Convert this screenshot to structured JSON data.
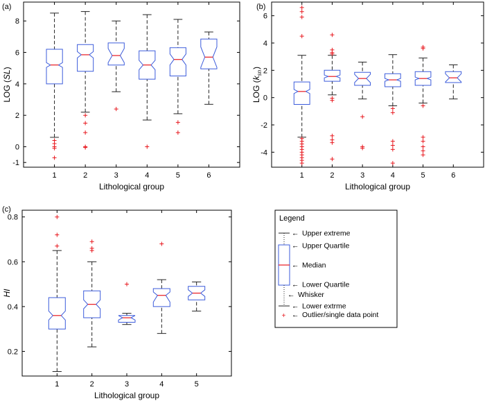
{
  "colors": {
    "box": "#3b5bdb",
    "median": "#e8181e",
    "outlier": "#e8181e",
    "whisker": "#222222",
    "axis": "#000000"
  },
  "chart_data": [
    {
      "type": "box",
      "panel_label": "(a)",
      "xlabel": "Lithological group",
      "ylabel_prefix": "LOG (",
      "ylabel_var": "SL",
      "ylabel_suffix": ")",
      "ylim": [
        -1.3,
        9.2
      ],
      "yticks": [
        -1,
        0,
        2,
        4,
        6,
        8
      ],
      "categories": [
        "1",
        "2",
        "3",
        "4",
        "5",
        "6"
      ],
      "boxes": [
        {
          "whisker_low": 0.6,
          "q1": 4.0,
          "median": 5.2,
          "q3": 6.2,
          "whisker_high": 8.5,
          "notch_low": 5.05,
          "notch_high": 5.35,
          "outliers": [
            0.4,
            0.2,
            0.0,
            -0.1,
            -0.7
          ]
        },
        {
          "whisker_low": 2.2,
          "q1": 4.8,
          "median": 5.85,
          "q3": 6.5,
          "whisker_high": 8.6,
          "notch_low": 5.65,
          "notch_high": 6.05,
          "outliers": [
            2.0,
            1.5,
            0.9,
            0.0,
            -0.05
          ]
        },
        {
          "whisker_low": 3.5,
          "q1": 5.2,
          "median": 5.8,
          "q3": 6.6,
          "whisker_high": 8.0,
          "notch_low": 5.35,
          "notch_high": 6.25,
          "outliers": [
            2.4
          ]
        },
        {
          "whisker_low": 1.7,
          "q1": 4.3,
          "median": 5.2,
          "q3": 6.1,
          "whisker_high": 8.4,
          "notch_low": 4.9,
          "notch_high": 5.5,
          "outliers": [
            0.0
          ]
        },
        {
          "whisker_low": 2.1,
          "q1": 4.5,
          "median": 5.55,
          "q3": 6.3,
          "whisker_high": 8.1,
          "notch_low": 5.2,
          "notch_high": 5.9,
          "outliers": [
            1.55,
            0.9
          ]
        },
        {
          "whisker_low": 2.7,
          "q1": 4.95,
          "median": 5.7,
          "q3": 6.85,
          "whisker_high": 7.3,
          "notch_low": 5.05,
          "notch_high": 6.35,
          "outliers": []
        }
      ]
    },
    {
      "type": "box",
      "panel_label": "(b)",
      "xlabel": "Lithological group",
      "ylabel_prefix": "LOG (",
      "ylabel_var": "k",
      "ylabel_sub": "sn",
      "ylabel_suffix": ")",
      "ylim": [
        -5.1,
        7.0
      ],
      "yticks": [
        -4,
        -2,
        0,
        2,
        4,
        6
      ],
      "categories": [
        "1",
        "2",
        "3",
        "4",
        "5",
        "6"
      ],
      "boxes": [
        {
          "whisker_low": -2.9,
          "q1": -0.5,
          "median": 0.45,
          "q3": 1.15,
          "whisker_high": 3.1,
          "notch_low": 0.3,
          "notch_high": 0.6,
          "outliers": [
            6.6,
            6.3,
            5.9,
            4.5,
            -3.0,
            -3.2,
            -3.4,
            -3.6,
            -3.8,
            -4.0,
            -4.2,
            -4.4,
            -4.6,
            -4.8
          ]
        },
        {
          "whisker_low": 0.2,
          "q1": 1.2,
          "median": 1.55,
          "q3": 2.0,
          "whisker_high": 3.1,
          "notch_low": 1.45,
          "notch_high": 1.65,
          "outliers": [
            4.6,
            3.5,
            3.3,
            3.2,
            -0.05,
            -0.2,
            -2.8,
            -3.1,
            -3.3,
            -4.5
          ]
        },
        {
          "whisker_low": -0.1,
          "q1": 0.9,
          "median": 1.4,
          "q3": 1.85,
          "whisker_high": 2.6,
          "notch_low": 1.1,
          "notch_high": 1.7,
          "outliers": [
            -1.4,
            -3.6,
            -3.7
          ]
        },
        {
          "whisker_low": -0.6,
          "q1": 0.8,
          "median": 1.3,
          "q3": 1.75,
          "whisker_high": 3.15,
          "notch_low": 1.2,
          "notch_high": 1.4,
          "outliers": [
            -0.8,
            -1.1,
            -3.2,
            -3.5,
            -3.8,
            -4.8
          ]
        },
        {
          "whisker_low": -0.4,
          "q1": 0.9,
          "median": 1.4,
          "q3": 1.9,
          "whisker_high": 2.9,
          "notch_low": 1.3,
          "notch_high": 1.5,
          "outliers": [
            3.7,
            3.6,
            -0.6,
            -2.9,
            -3.2,
            -3.6,
            -3.9,
            -4.2
          ]
        },
        {
          "whisker_low": -0.1,
          "q1": 1.1,
          "median": 1.45,
          "q3": 1.9,
          "whisker_high": 2.4,
          "notch_low": 1.15,
          "notch_high": 1.75,
          "outliers": []
        }
      ]
    },
    {
      "type": "box",
      "panel_label": "(c)",
      "xlabel": "Lithological group",
      "ylabel_var": "HI",
      "ylim": [
        0.09,
        0.83
      ],
      "yticks": [
        0.2,
        0.4,
        0.6,
        0.8
      ],
      "categories": [
        "1",
        "2",
        "3",
        "4",
        "5"
      ],
      "boxes": [
        {
          "whisker_low": 0.11,
          "q1": 0.3,
          "median": 0.36,
          "q3": 0.44,
          "whisker_high": 0.65,
          "notch_low": 0.34,
          "notch_high": 0.38,
          "outliers": [
            0.8,
            0.72,
            0.67
          ]
        },
        {
          "whisker_low": 0.22,
          "q1": 0.35,
          "median": 0.41,
          "q3": 0.47,
          "whisker_high": 0.6,
          "notch_low": 0.39,
          "notch_high": 0.43,
          "outliers": [
            0.69,
            0.66,
            0.65
          ]
        },
        {
          "whisker_low": 0.32,
          "q1": 0.33,
          "median": 0.35,
          "q3": 0.36,
          "whisker_high": 0.37,
          "notch_low": 0.34,
          "notch_high": 0.36,
          "outliers": [
            0.5
          ]
        },
        {
          "whisker_low": 0.28,
          "q1": 0.4,
          "median": 0.45,
          "q3": 0.48,
          "whisker_high": 0.52,
          "notch_low": 0.42,
          "notch_high": 0.465,
          "outliers": [
            0.68
          ]
        },
        {
          "whisker_low": 0.38,
          "q1": 0.43,
          "median": 0.46,
          "q3": 0.49,
          "whisker_high": 0.51,
          "notch_low": 0.445,
          "notch_high": 0.475,
          "outliers": []
        }
      ]
    }
  ],
  "legend": {
    "title": "Legend",
    "upper_extreme": "Upper extreme",
    "upper_quartile": "Upper Quartile",
    "median": "Median",
    "lower_quartile": "Lower Quartile",
    "whisker": "Whisker",
    "lower_extreme": "Lower extrme",
    "outlier": "Outlier/single data point"
  }
}
